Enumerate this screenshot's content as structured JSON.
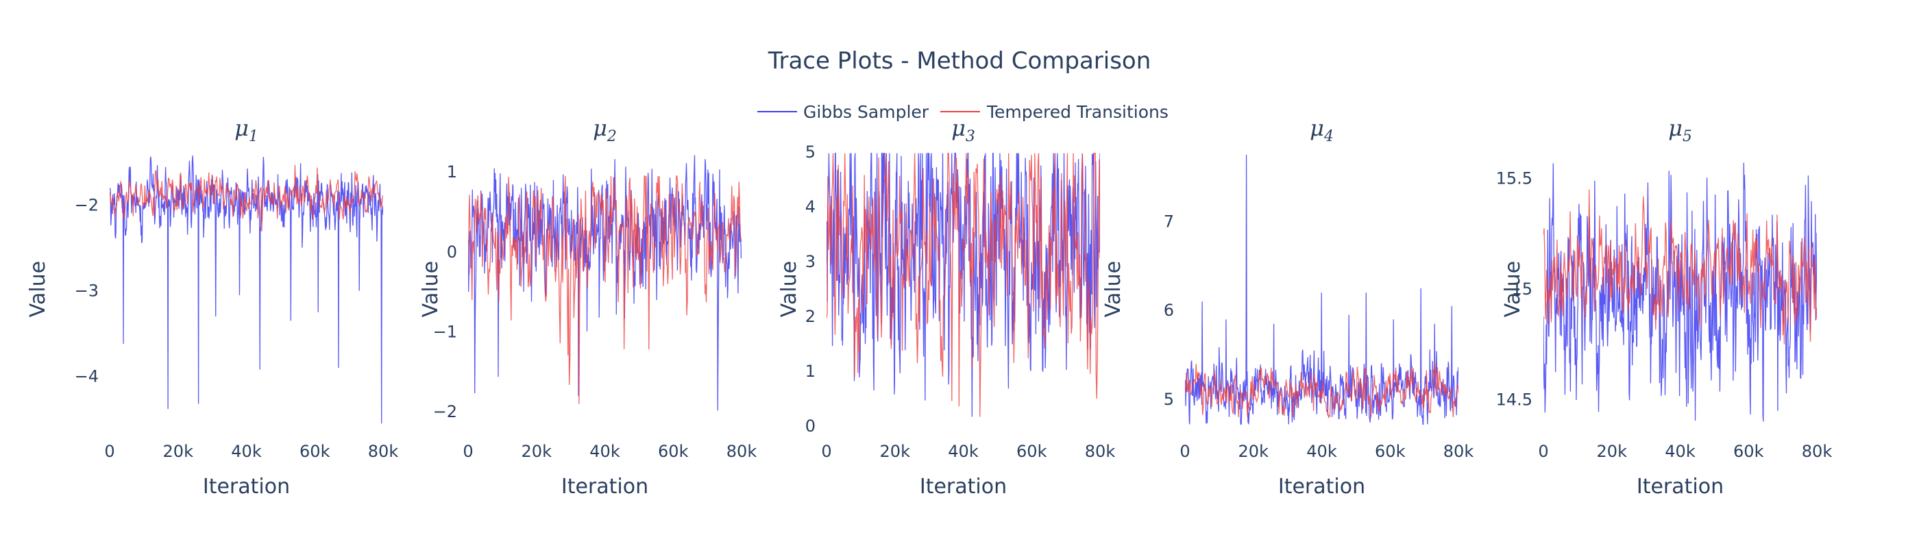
{
  "chart_data": {
    "type": "line",
    "title": "Trace Plots - Method Comparison",
    "legend": {
      "placement": "top-center",
      "entries": [
        {
          "name": "Gibbs Sampler",
          "color": "#3b3bf2"
        },
        {
          "name": "Tempered Transitions",
          "color": "#f03c3c"
        }
      ]
    },
    "series_colors": {
      "gibbs": "#3b3bf2",
      "tempered": "#f03c3c"
    },
    "xlim": [
      0,
      80000
    ],
    "panels": [
      {
        "title_base": "μ",
        "title_sub": "1",
        "xlabel": "Iteration",
        "ylabel": "Value",
        "ylim": [
          -4.58,
          -1.38
        ],
        "xticks": [
          {
            "v": 0,
            "label": "0"
          },
          {
            "v": 20000,
            "label": "20k"
          },
          {
            "v": 40000,
            "label": "40k"
          },
          {
            "v": 60000,
            "label": "60k"
          },
          {
            "v": 80000,
            "label": "80k"
          }
        ],
        "yticks": [
          {
            "v": -2,
            "label": "−2"
          },
          {
            "v": -3,
            "label": "−3"
          },
          {
            "v": -4,
            "label": "−4"
          }
        ],
        "gibbs": {
          "mean": -1.95,
          "sd": 0.16,
          "min": -2.7,
          "max": -1.42
        },
        "tempered": {
          "mean": -1.9,
          "sd": 0.11,
          "min": -2.4,
          "max": -1.48
        },
        "spikes": [
          [
            4000,
            -3.62
          ],
          [
            17000,
            -4.38
          ],
          [
            26000,
            -4.32
          ],
          [
            31000,
            -3.3
          ],
          [
            38000,
            -3.05
          ],
          [
            44000,
            -3.92
          ],
          [
            53000,
            -3.35
          ],
          [
            61000,
            -3.25
          ],
          [
            67000,
            -3.9
          ],
          [
            73000,
            -3.0
          ],
          [
            79500,
            -4.55
          ]
        ]
      },
      {
        "title_base": "μ",
        "title_sub": "2",
        "xlabel": "Iteration",
        "ylabel": "Value",
        "ylim": [
          -2.18,
          1.25
        ],
        "xticks": [
          {
            "v": 0,
            "label": "0"
          },
          {
            "v": 20000,
            "label": "20k"
          },
          {
            "v": 40000,
            "label": "40k"
          },
          {
            "v": 60000,
            "label": "60k"
          },
          {
            "v": 80000,
            "label": "80k"
          }
        ],
        "yticks": [
          {
            "v": 1,
            "label": "1"
          },
          {
            "v": 0,
            "label": "0"
          },
          {
            "v": -1,
            "label": "−1"
          },
          {
            "v": -2,
            "label": "−2"
          }
        ],
        "gibbs": {
          "mean": 0.3,
          "sd": 0.35,
          "min": -2.15,
          "max": 1.24
        },
        "tempered": {
          "mean": 0.25,
          "sd": 0.4,
          "min": -2.05,
          "max": 0.95
        },
        "spikes": []
      },
      {
        "title_base": "μ",
        "title_sub": "3",
        "xlabel": "Iteration",
        "ylabel": "Value",
        "ylim": [
          0,
          5
        ],
        "xticks": [
          {
            "v": 0,
            "label": "0"
          },
          {
            "v": 20000,
            "label": "20k"
          },
          {
            "v": 40000,
            "label": "40k"
          },
          {
            "v": 60000,
            "label": "60k"
          },
          {
            "v": 80000,
            "label": "80k"
          }
        ],
        "yticks": [
          {
            "v": 5,
            "label": "5"
          },
          {
            "v": 4,
            "label": "4"
          },
          {
            "v": 3,
            "label": "3"
          },
          {
            "v": 2,
            "label": "2"
          },
          {
            "v": 1,
            "label": "1"
          },
          {
            "v": 0,
            "label": "0"
          }
        ],
        "gibbs": {
          "mean": 3.3,
          "sd": 1.1,
          "min": 0.05,
          "max": 4.98
        },
        "tempered": {
          "mean": 3.3,
          "sd": 1.05,
          "min": 0.1,
          "max": 4.98
        },
        "spikes": []
      },
      {
        "title_base": "μ",
        "title_sub": "4",
        "xlabel": "Iteration",
        "ylabel": "Value",
        "ylim": [
          4.7,
          7.78
        ],
        "xticks": [
          {
            "v": 0,
            "label": "0"
          },
          {
            "v": 20000,
            "label": "20k"
          },
          {
            "v": 40000,
            "label": "40k"
          },
          {
            "v": 60000,
            "label": "60k"
          },
          {
            "v": 80000,
            "label": "80k"
          }
        ],
        "yticks": [
          {
            "v": 7,
            "label": "7"
          },
          {
            "v": 6,
            "label": "6"
          },
          {
            "v": 5,
            "label": "5"
          }
        ],
        "gibbs": {
          "mean": 5.1,
          "sd": 0.16,
          "min": 4.72,
          "max": 5.6
        },
        "tempered": {
          "mean": 5.1,
          "sd": 0.12,
          "min": 4.8,
          "max": 5.6
        },
        "spikes": [
          [
            5000,
            6.1
          ],
          [
            12000,
            5.9
          ],
          [
            18000,
            7.75
          ],
          [
            26000,
            5.85
          ],
          [
            40000,
            6.2
          ],
          [
            48000,
            5.95
          ],
          [
            53000,
            6.2
          ],
          [
            61000,
            5.9
          ],
          [
            69000,
            6.25
          ],
          [
            73000,
            5.85
          ],
          [
            78000,
            6.05
          ]
        ]
      },
      {
        "title_base": "μ",
        "title_sub": "5",
        "xlabel": "Iteration",
        "ylabel": "Value",
        "ylim": [
          14.38,
          15.62
        ],
        "xticks": [
          {
            "v": 0,
            "label": "0"
          },
          {
            "v": 20000,
            "label": "20k"
          },
          {
            "v": 40000,
            "label": "40k"
          },
          {
            "v": 60000,
            "label": "60k"
          },
          {
            "v": 80000,
            "label": "80k"
          }
        ],
        "yticks": [
          {
            "v": 15.5,
            "label": "15.5"
          },
          {
            "v": 15,
            "label": "15"
          },
          {
            "v": 14.5,
            "label": "14.5"
          }
        ],
        "gibbs": {
          "mean": 15.0,
          "sd": 0.2,
          "min": 14.4,
          "max": 15.61
        },
        "tempered": {
          "mean": 15.08,
          "sd": 0.12,
          "min": 14.75,
          "max": 15.45
        },
        "spikes": []
      }
    ]
  }
}
